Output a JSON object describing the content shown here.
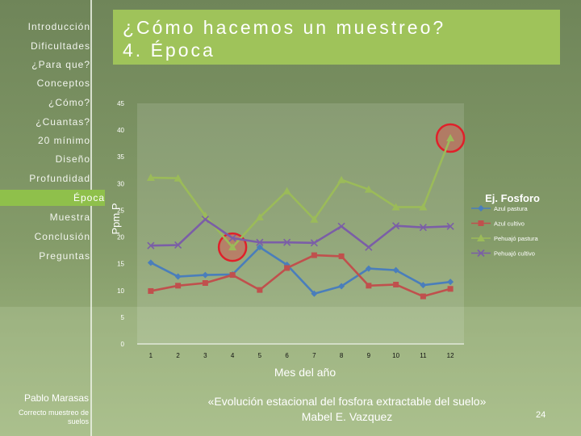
{
  "sidebar": {
    "items": [
      {
        "label": "Introducción"
      },
      {
        "label": "Dificultades"
      },
      {
        "label": "¿Para que?"
      },
      {
        "label": "Conceptos"
      },
      {
        "label": "¿Cómo?"
      },
      {
        "label": "¿Cuantas?"
      },
      {
        "label": "20 mínimo"
      },
      {
        "label": "Diseño"
      },
      {
        "label": "Profundidad"
      },
      {
        "label": "Época"
      },
      {
        "label": "Muestra"
      },
      {
        "label": "Conclusión"
      },
      {
        "label": "Preguntas"
      }
    ],
    "active_index": 9
  },
  "title": "¿Cómo hacemos un muestreo?\n4. Época",
  "footer": {
    "author": "Pablo Marasas",
    "subtitle": "Correcto muestreo de suelos",
    "quote": "«Evolución estacional del fosfora extractable del suelo» Mabel E. Vazquez",
    "page": "24"
  },
  "colors": {
    "background": "#7a8f63",
    "title_bar": "#9fc35a",
    "active_item": "#8fc04b",
    "highlight_circle": "#e0202a"
  },
  "chart_data": {
    "type": "line",
    "title": "Ej. Fosforo",
    "xlabel": "Mes del año",
    "ylabel": "Ppm P",
    "x": [
      1,
      2,
      3,
      4,
      5,
      6,
      7,
      8,
      9,
      10,
      11,
      12
    ],
    "xticks": [
      "1",
      "2",
      "3",
      "4",
      "5",
      "6",
      "7",
      "8",
      "9",
      "10",
      "11",
      "12"
    ],
    "yticks": [
      "0",
      "5",
      "10",
      "15",
      "20",
      "25",
      "30",
      "35",
      "40",
      "45"
    ],
    "ylim": [
      0,
      45
    ],
    "grid": false,
    "legend_position": "right",
    "series": [
      {
        "name": "Azul pastura",
        "color": "#4a7ebb",
        "marker": "diamond",
        "values": [
          15.2,
          12.6,
          12.9,
          13.0,
          18.1,
          14.8,
          9.4,
          10.8,
          14.1,
          13.8,
          11.0,
          11.6
        ]
      },
      {
        "name": "Azul cultivo",
        "color": "#c0504d",
        "marker": "square",
        "values": [
          9.9,
          10.9,
          11.4,
          12.9,
          10.1,
          14.2,
          16.6,
          16.4,
          10.9,
          11.1,
          8.9,
          10.3
        ]
      },
      {
        "name": "Pehuajó pastura",
        "color": "#9bbb59",
        "marker": "triangle",
        "values": [
          31.1,
          31.0,
          24.0,
          18.1,
          23.7,
          28.6,
          23.3,
          30.7,
          28.9,
          25.6,
          25.6,
          38.5
        ]
      },
      {
        "name": "Pehuajó cultivo",
        "color": "#7b5ea7",
        "marker": "x",
        "values": [
          18.4,
          18.5,
          23.3,
          19.8,
          19.0,
          19.0,
          18.9,
          22.0,
          18.1,
          22.1,
          21.8,
          22.0
        ]
      }
    ],
    "highlight_circles": [
      {
        "x": 4,
        "y": 18.1
      },
      {
        "x": 12,
        "y": 38.5
      }
    ]
  }
}
